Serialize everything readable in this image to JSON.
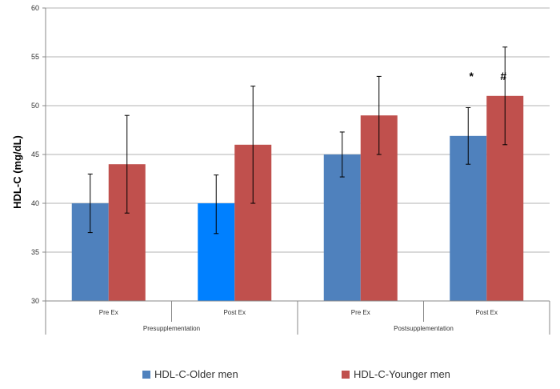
{
  "chart_data": {
    "type": "bar",
    "title": "",
    "ylabel": "HDL-C (mg/dL)",
    "ylim": [
      30,
      60
    ],
    "yticks": [
      30,
      35,
      40,
      45,
      50,
      55,
      60
    ],
    "categories": [
      "Pre Ex",
      "Post Ex",
      "Pre Ex",
      "Post Ex"
    ],
    "groups": [
      {
        "label": "Presupplementation",
        "categories": [
          "Pre Ex",
          "Post Ex"
        ]
      },
      {
        "label": "Postsupplementation",
        "categories": [
          "Pre Ex",
          "Post Ex"
        ]
      }
    ],
    "series": [
      {
        "name": "HDL-C-Older men",
        "color": "#4f81bd",
        "values": [
          40,
          40,
          45,
          46.9
        ],
        "error_low": [
          37,
          36.9,
          42.7,
          44
        ],
        "error_high": [
          43,
          42.9,
          47.3,
          49.8
        ]
      },
      {
        "name": "HDL-C-Younger men",
        "color": "#c0504d",
        "values": [
          44,
          46,
          49,
          51
        ],
        "error_low": [
          39,
          40,
          45,
          46
        ],
        "error_high": [
          49,
          52,
          53,
          56
        ]
      }
    ],
    "highlight": {
      "series": 0,
      "category": 1,
      "color": "#0080ff"
    },
    "annotations": [
      {
        "text": "*",
        "category": 3,
        "series": 0
      },
      {
        "text": "#",
        "category": 3,
        "series": 1
      }
    ],
    "grid": true,
    "legend_position": "bottom"
  }
}
